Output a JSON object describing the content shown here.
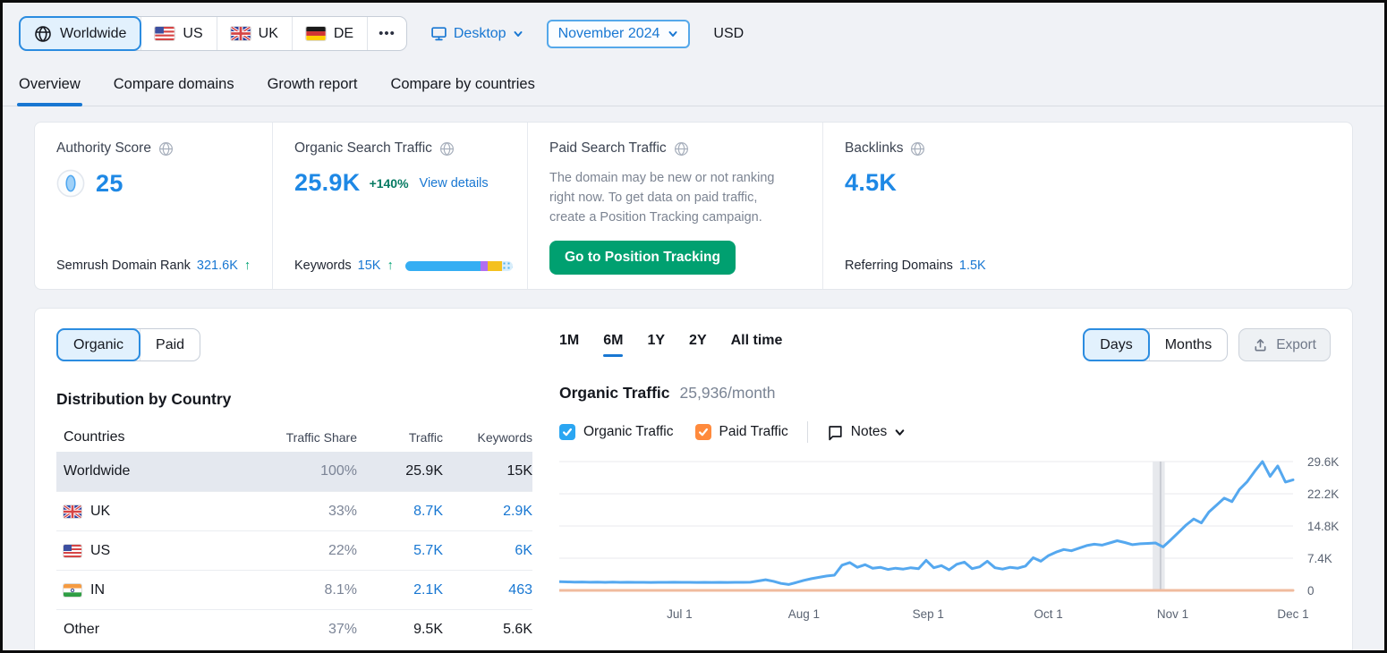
{
  "topbar": {
    "location_tabs": [
      {
        "label": "Worldwide",
        "flag": null,
        "selected": true
      },
      {
        "label": "US",
        "flag": "us",
        "selected": false
      },
      {
        "label": "UK",
        "flag": "uk",
        "selected": false
      },
      {
        "label": "DE",
        "flag": "de",
        "selected": false
      }
    ],
    "more_label": "•••",
    "device_selector": {
      "label": "Desktop"
    },
    "date_selector": {
      "label": "November 2024"
    },
    "currency": "USD"
  },
  "nav": {
    "tabs": [
      {
        "label": "Overview",
        "active": true
      },
      {
        "label": "Compare domains",
        "active": false
      },
      {
        "label": "Growth report",
        "active": false
      },
      {
        "label": "Compare by countries",
        "active": false
      }
    ]
  },
  "metrics": {
    "authority": {
      "title": "Authority Score",
      "value": "25",
      "footer_label": "Semrush Domain Rank",
      "footer_value": "321.6K",
      "footer_arrow": "↑"
    },
    "organic": {
      "title": "Organic Search Traffic",
      "value": "25.9K",
      "change": "+140%",
      "details_link": "View details",
      "footer_label": "Keywords",
      "footer_value": "15K",
      "footer_arrow": "↑",
      "keywords_bar": [
        {
          "color": "#35aef3",
          "pct": 70,
          "dotted": false
        },
        {
          "color": "#b16ff1",
          "pct": 7,
          "dotted": false
        },
        {
          "color": "#f4c11f",
          "pct": 13,
          "dotted": false
        },
        {
          "color": "#7fcbf5",
          "pct": 10,
          "dotted": true
        }
      ]
    },
    "paid": {
      "title": "Paid Search Traffic",
      "description": "The domain may be new or not ranking right now. To get data on paid traffic, create a Position Tracking campaign.",
      "button_label": "Go to Position Tracking"
    },
    "backlinks": {
      "title": "Backlinks",
      "value": "4.5K",
      "footer_label": "Referring Domains",
      "footer_value": "1.5K"
    }
  },
  "panel": {
    "type_toggle": {
      "options": [
        "Organic",
        "Paid"
      ],
      "selected": "Organic"
    },
    "table": {
      "title": "Distribution by Country",
      "headers": [
        "Countries",
        "Traffic Share",
        "Traffic",
        "Keywords"
      ],
      "rows": [
        {
          "country": "Worldwide",
          "flag": null,
          "share": "100%",
          "share_pct": 100,
          "traffic": "25.9K",
          "keywords": "15K",
          "highlighted": true,
          "links": false
        },
        {
          "country": "UK",
          "flag": "uk",
          "share": "33%",
          "share_pct": 33,
          "traffic": "8.7K",
          "keywords": "2.9K",
          "highlighted": false,
          "links": true
        },
        {
          "country": "US",
          "flag": "us",
          "share": "22%",
          "share_pct": 22,
          "traffic": "5.7K",
          "keywords": "6K",
          "highlighted": false,
          "links": true
        },
        {
          "country": "IN",
          "flag": "in",
          "share": "8.1%",
          "share_pct": 8.1,
          "traffic": "2.1K",
          "keywords": "463",
          "highlighted": false,
          "links": true
        },
        {
          "country": "Other",
          "flag": null,
          "share": "37%",
          "share_pct": 37,
          "traffic": "9.5K",
          "keywords": "5.6K",
          "highlighted": false,
          "links": false
        }
      ]
    },
    "range_tabs": {
      "options": [
        "1M",
        "6M",
        "1Y",
        "2Y",
        "All time"
      ],
      "selected": "6M"
    },
    "granularity_toggle": {
      "options": [
        "Days",
        "Months"
      ],
      "selected": "Days"
    },
    "export_label": "Export",
    "legend": {
      "items": [
        {
          "label": "Organic Traffic",
          "color": "#2ba6f2",
          "checked": true
        },
        {
          "label": "Paid Traffic",
          "color": "#ff8a3d",
          "checked": true
        }
      ],
      "notes_label": "Notes"
    }
  },
  "chart_data": {
    "type": "line",
    "title": "Organic Traffic",
    "subtitle": "25,936/month",
    "units": "visits, thousands",
    "grid": true,
    "legend_position": "top",
    "x_range_days": 183,
    "x_ticks": [
      {
        "label": "Jul 1",
        "day": 30
      },
      {
        "label": "Aug 1",
        "day": 61
      },
      {
        "label": "Sep 1",
        "day": 92
      },
      {
        "label": "Oct 1",
        "day": 122
      },
      {
        "label": "Nov 1",
        "day": 153
      },
      {
        "label": "Dec 1",
        "day": 183
      }
    ],
    "y_ticks": [
      {
        "label": "29.6K",
        "value": 29.6
      },
      {
        "label": "22.2K",
        "value": 22.2
      },
      {
        "label": "14.8K",
        "value": 14.8
      },
      {
        "label": "7.4K",
        "value": 7.4
      },
      {
        "label": "0",
        "value": 0
      }
    ],
    "ylim": [
      0,
      29.6
    ],
    "highlight_band": {
      "day_start": 148,
      "day_end": 151
    },
    "series": [
      {
        "name": "Organic Traffic",
        "color": "#55a8ef",
        "values": [
          2.0,
          1.95,
          1.9,
          1.93,
          1.88,
          1.9,
          1.86,
          1.89,
          1.85,
          1.87,
          1.84,
          1.86,
          1.83,
          1.86,
          1.84,
          1.87,
          1.84,
          1.86,
          1.83,
          1.85,
          1.82,
          1.85,
          1.83,
          1.86,
          1.84,
          1.87,
          2.15,
          2.45,
          2.1,
          1.6,
          1.35,
          1.8,
          2.3,
          2.7,
          3.0,
          3.3,
          3.5,
          5.8,
          6.4,
          5.3,
          5.9,
          5.1,
          5.3,
          4.8,
          5.1,
          4.9,
          5.2,
          5.0,
          6.9,
          5.2,
          5.7,
          4.7,
          6.0,
          6.5,
          5.0,
          5.4,
          6.7,
          5.2,
          4.9,
          5.3,
          5.1,
          5.6,
          7.5,
          6.7,
          8.0,
          8.8,
          9.4,
          9.1,
          9.7,
          10.3,
          10.6,
          10.4,
          10.9,
          11.4,
          11.0,
          10.5,
          10.7,
          10.8,
          10.9,
          10.0,
          11.6,
          13.3,
          15.0,
          16.4,
          15.5,
          18.0,
          19.6,
          21.2,
          20.4,
          23.2,
          25.0,
          27.4,
          29.6,
          26.2,
          28.6,
          24.9,
          25.4
        ]
      },
      {
        "name": "Paid Traffic",
        "color": "#f0bb9e",
        "values": [
          0,
          0
        ]
      }
    ]
  }
}
